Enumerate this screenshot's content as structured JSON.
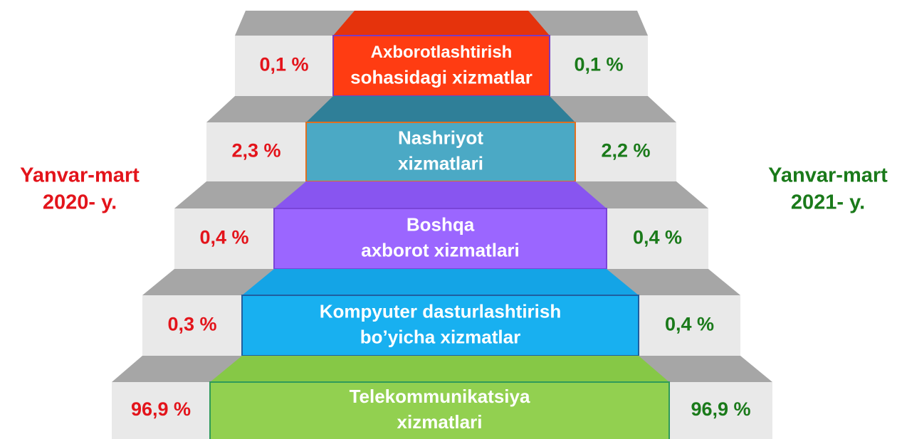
{
  "left_label": [
    "Yanvar-mart",
    "2020- y."
  ],
  "right_label": [
    "Yanvar-mart",
    "2021- y."
  ],
  "tiers": [
    {
      "label": [
        "Axborotlashtirish",
        "sohasidagi xizmatlar"
      ],
      "left": "0,1 %",
      "right": "0,1 %"
    },
    {
      "label": [
        "Nashriyot",
        "xizmatlari"
      ],
      "left": "2,3 %",
      "right": "2,2 %"
    },
    {
      "label": [
        "Boshqa",
        "axborot xizmatlari"
      ],
      "left": "0,4 %",
      "right": "0,4 %"
    },
    {
      "label": [
        "Kompyuter dasturlashtirish",
        "bo’yicha xizmatlar"
      ],
      "left": "0,3 %",
      "right": "0,4 %"
    },
    {
      "label": [
        "Telekommunikatsiya",
        "xizmatlari"
      ],
      "left": "96,9 %",
      "right": "96,9 %"
    }
  ]
}
